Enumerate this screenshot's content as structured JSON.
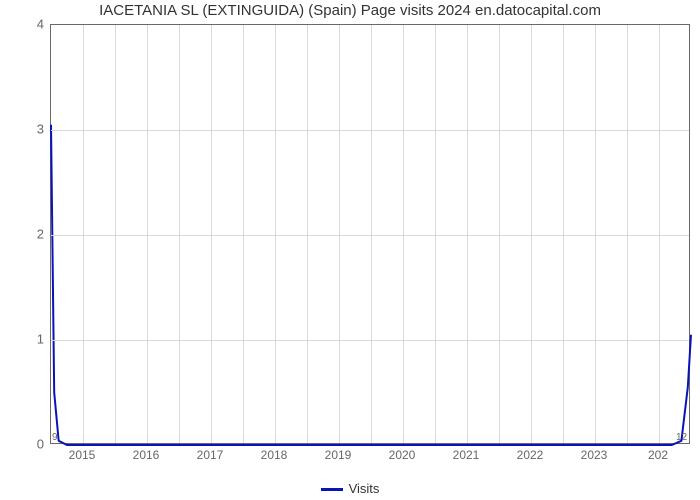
{
  "chart": {
    "type": "line",
    "title": "IACETANIA SL (EXTINGUIDA) (Spain) Page visits 2024 en.datocapital.com",
    "title_fontsize": 15,
    "title_color": "#333333",
    "background_color": "#ffffff",
    "plot_border_color": "#696969",
    "grid_color": "#d9d9d9",
    "xlabel": "Visits",
    "xlabel_fontsize": 13,
    "label_color": "#333333",
    "tick_fontsize": 13,
    "tick_color": "#666666",
    "ylim": [
      0,
      4
    ],
    "ytick_step": 1,
    "yticks": [
      0,
      1,
      2,
      3,
      4
    ],
    "xlim": [
      2014.5,
      2024.5
    ],
    "xticks": [
      2015,
      2016,
      2017,
      2018,
      2019,
      2020,
      2021,
      2022,
      2023
    ],
    "end_tick_labels": {
      "left_small": "9",
      "right_small": "12",
      "right_major": "202"
    },
    "minor_grid_per_major": 2,
    "series": {
      "name": "Visits",
      "color": "#0814ba",
      "line_width": 2,
      "x": [
        2014.5,
        2014.55,
        2014.62,
        2014.75,
        2024.2,
        2024.35,
        2024.45,
        2024.5
      ],
      "y": [
        3.05,
        0.5,
        0.04,
        0.0,
        0.0,
        0.04,
        0.55,
        1.05
      ]
    },
    "legend": {
      "label": "Visits",
      "swatch_color": "#0814ba"
    }
  }
}
